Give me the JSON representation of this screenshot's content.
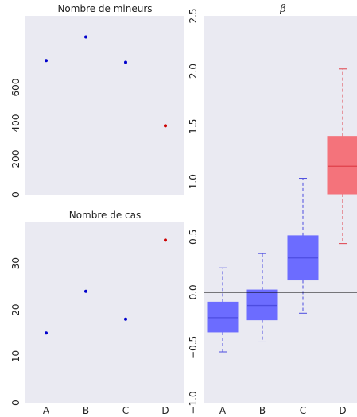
{
  "colors": {
    "panel_bg": "#EAEAF2",
    "blue_point": "#0000CC",
    "red_point": "#CC0000",
    "blue_box": "#6C6CFF",
    "blue_box_edge": "#4C4CE0",
    "red_box": "#F4737B",
    "red_box_edge": "#E0404A",
    "zero_line": "#000000"
  },
  "chart_data": [
    {
      "type": "scatter",
      "title": "Nombre de mineurs",
      "categories": [
        "A",
        "B",
        "C",
        "D"
      ],
      "values": [
        750,
        882,
        740,
        385
      ],
      "point_colors": [
        "blue",
        "blue",
        "blue",
        "red"
      ],
      "ylim": [
        0,
        1000
      ],
      "yticks": [
        0,
        200,
        400,
        600
      ],
      "xticks_visible": false,
      "grid": false
    },
    {
      "type": "scatter",
      "title": "Nombre de cas",
      "categories": [
        "A",
        "B",
        "C",
        "D"
      ],
      "values": [
        15,
        24,
        18,
        35
      ],
      "point_colors": [
        "blue",
        "blue",
        "blue",
        "red"
      ],
      "ylim": [
        0,
        39
      ],
      "yticks": [
        0,
        10,
        20,
        30
      ],
      "grid": false
    },
    {
      "type": "box",
      "title": "β",
      "categories": [
        "A",
        "B",
        "C",
        "D"
      ],
      "boxes": [
        {
          "whisker_low": -0.54,
          "q1": -0.36,
          "median": -0.23,
          "q3": -0.09,
          "whisker_high": 0.22,
          "color": "blue"
        },
        {
          "whisker_low": -0.45,
          "q1": -0.25,
          "median": -0.12,
          "q3": 0.02,
          "whisker_high": 0.35,
          "color": "blue"
        },
        {
          "whisker_low": -0.19,
          "q1": 0.11,
          "median": 0.31,
          "q3": 0.51,
          "whisker_high": 1.03,
          "color": "blue"
        },
        {
          "whisker_low": 0.44,
          "q1": 0.89,
          "median": 1.14,
          "q3": 1.41,
          "whisker_high": 2.02,
          "color": "red"
        }
      ],
      "ylim": [
        -1.0,
        2.5
      ],
      "yticks": [
        -1.0,
        -0.5,
        0.0,
        0.5,
        1.0,
        1.5,
        2.0,
        2.5
      ],
      "ytick_labels": [
        "−1.0",
        "−0.5",
        "0.0",
        "0.5",
        "1.0",
        "1.5",
        "2.0",
        "2.5"
      ],
      "ytick_rotation": "vertical",
      "reference_line": 0,
      "grid": false
    }
  ]
}
